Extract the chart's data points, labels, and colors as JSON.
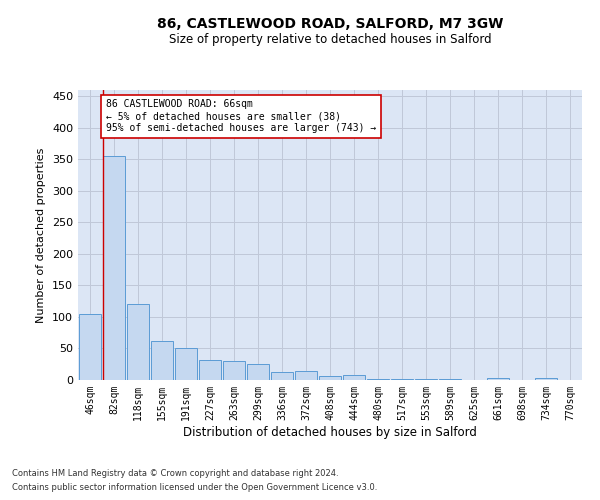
{
  "title": "86, CASTLEWOOD ROAD, SALFORD, M7 3GW",
  "subtitle": "Size of property relative to detached houses in Salford",
  "xlabel": "Distribution of detached houses by size in Salford",
  "ylabel": "Number of detached properties",
  "categories": [
    "46sqm",
    "82sqm",
    "118sqm",
    "155sqm",
    "191sqm",
    "227sqm",
    "263sqm",
    "299sqm",
    "336sqm",
    "372sqm",
    "408sqm",
    "444sqm",
    "480sqm",
    "517sqm",
    "553sqm",
    "589sqm",
    "625sqm",
    "661sqm",
    "698sqm",
    "734sqm",
    "770sqm"
  ],
  "values": [
    104,
    355,
    120,
    62,
    50,
    31,
    30,
    25,
    12,
    14,
    7,
    8,
    2,
    2,
    2,
    2,
    0,
    3,
    0,
    3,
    0
  ],
  "bar_color": "#c5d8f0",
  "bar_edge_color": "#5b9bd5",
  "grid_color": "#c0c8d8",
  "background_color": "#dce6f5",
  "annotation_line_color": "#cc0000",
  "annotation_box_text": "86 CASTLEWOOD ROAD: 66sqm\n← 5% of detached houses are smaller (38)\n95% of semi-detached houses are larger (743) →",
  "annotation_box_edgecolor": "#cc0000",
  "ylim": [
    0,
    460
  ],
  "yticks": [
    0,
    50,
    100,
    150,
    200,
    250,
    300,
    350,
    400,
    450
  ],
  "footer_line1": "Contains HM Land Registry data © Crown copyright and database right 2024.",
  "footer_line2": "Contains public sector information licensed under the Open Government Licence v3.0."
}
